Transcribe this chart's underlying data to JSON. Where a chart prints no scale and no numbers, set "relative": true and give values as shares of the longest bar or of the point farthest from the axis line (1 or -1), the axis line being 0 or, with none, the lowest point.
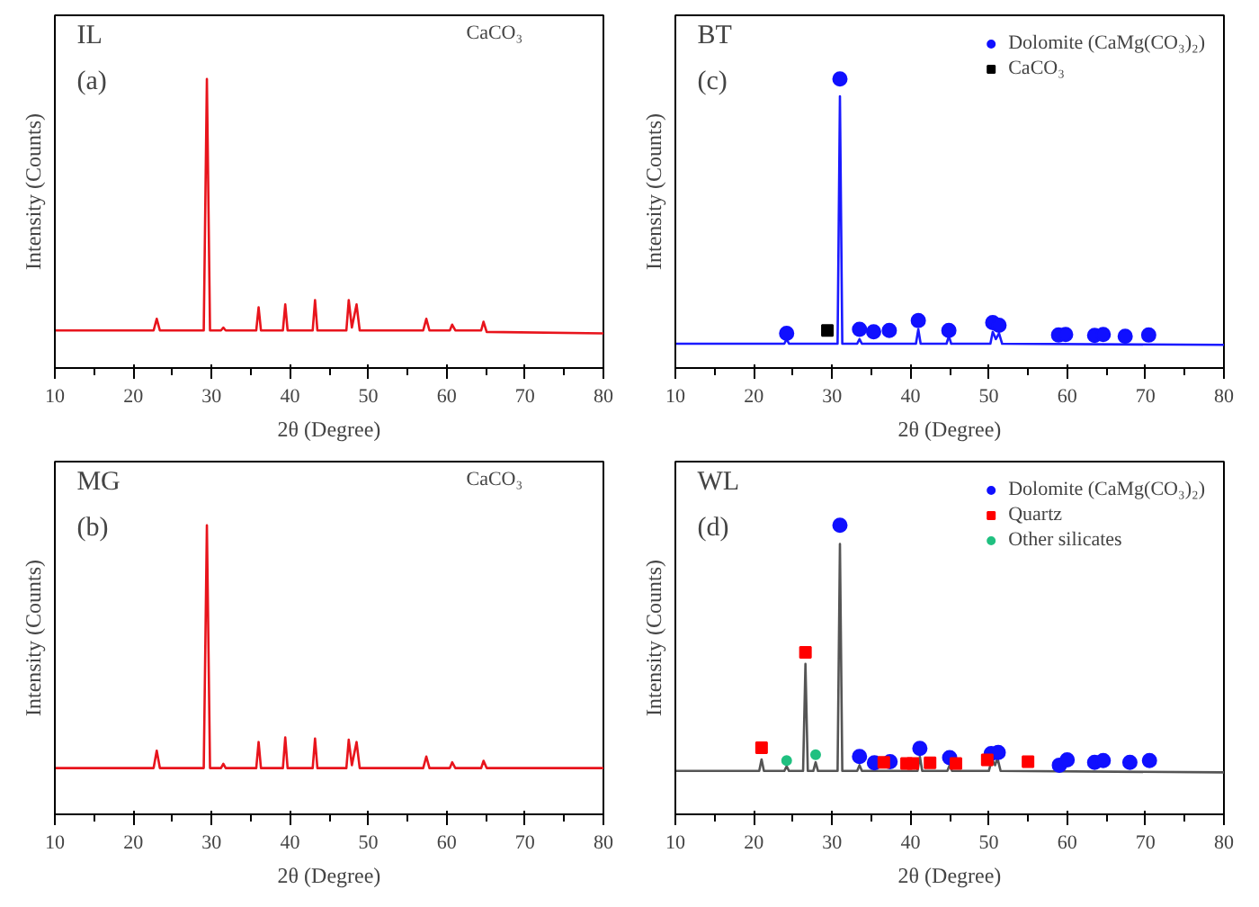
{
  "chart_data": [
    {
      "type": "line",
      "title": "IL",
      "subtitle": "(a)",
      "xlabel": "2θ (Degree)",
      "ylabel": "Intensity (Counts)",
      "relative": true,
      "xlim": [
        10,
        80
      ],
      "xticks": [
        10,
        20,
        30,
        40,
        50,
        60,
        70,
        80
      ],
      "tick_labels": "x",
      "grid": false,
      "legend": false,
      "annotations": [
        "CaCO₃"
      ],
      "series": [
        {
          "color": "#e8141c",
          "marker": "none",
          "x": [
            10,
            22.6,
            23,
            23.4,
            29,
            29.4,
            29.8,
            31.2,
            31.5,
            31.8,
            35.7,
            36,
            36.3,
            39.1,
            39.4,
            39.7,
            42.9,
            43.2,
            43.5,
            47.2,
            47.5,
            47.9,
            48.5,
            48.9,
            57,
            57.4,
            57.8,
            60.4,
            60.7,
            61.1,
            64.4,
            64.7,
            65.1,
            80
          ],
          "values": [
            0.13,
            0.13,
            0.17,
            0.13,
            0.13,
            1.0,
            0.13,
            0.13,
            0.14,
            0.13,
            0.13,
            0.21,
            0.13,
            0.13,
            0.22,
            0.13,
            0.13,
            0.235,
            0.13,
            0.13,
            0.235,
            0.14,
            0.22,
            0.13,
            0.13,
            0.17,
            0.13,
            0.13,
            0.15,
            0.13,
            0.13,
            0.16,
            0.125,
            0.12
          ]
        }
      ]
    },
    {
      "type": "line",
      "title": "BT",
      "subtitle": "(c)",
      "xlabel": "2θ (Degree)",
      "ylabel": "Intensity (Counts)",
      "relative": true,
      "xlim": [
        10,
        80
      ],
      "xticks": [
        10,
        20,
        30,
        40,
        50,
        60,
        70,
        80
      ],
      "tick_labels": "x",
      "grid": false,
      "legend": "top right",
      "series": [
        {
          "color": "#1a1aff",
          "marker": "none",
          "x": [
            10,
            23.9,
            24.2,
            24.5,
            30.7,
            31,
            31.3,
            33.2,
            33.5,
            33.8,
            40.7,
            41,
            41.3,
            44.6,
            44.9,
            45.2,
            50.2,
            50.5,
            50.9,
            51.3,
            51.7,
            80
          ],
          "values": [
            0.084,
            0.084,
            0.1,
            0.084,
            0.084,
            0.94,
            0.084,
            0.084,
            0.1,
            0.084,
            0.084,
            0.134,
            0.084,
            0.084,
            0.11,
            0.084,
            0.084,
            0.125,
            0.1,
            0.12,
            0.084,
            0.08
          ]
        },
        {
          "type": "scatter",
          "name": "Dolomite (CaMg(CO₃)₂)",
          "color": "#1010ff",
          "marker": "circle",
          "x": [
            24.2,
            31,
            33.5,
            35.3,
            37.3,
            41,
            44.9,
            50.5,
            51.3,
            58.9,
            59.8,
            63.5,
            64.6,
            67.4,
            70.4
          ],
          "values": [
            0.12,
            1.0,
            0.134,
            0.125,
            0.13,
            0.164,
            0.13,
            0.157,
            0.148,
            0.114,
            0.116,
            0.113,
            0.116,
            0.11,
            0.114
          ]
        },
        {
          "type": "scatter",
          "name": "CaCO₃",
          "color": "#000000",
          "marker": "square",
          "x": [
            29.4
          ],
          "values": [
            0.13
          ]
        }
      ]
    },
    {
      "type": "line",
      "title": "MG",
      "subtitle": "(b)",
      "xlabel": "2θ (Degree)",
      "ylabel": "Intensity (Counts)",
      "relative": true,
      "xlim": [
        10,
        80
      ],
      "xticks": [
        10,
        20,
        30,
        40,
        50,
        60,
        70,
        80
      ],
      "tick_labels": "x",
      "grid": false,
      "legend": false,
      "annotations": [
        "CaCO₃"
      ],
      "series": [
        {
          "color": "#e8141c",
          "marker": "none",
          "x": [
            10,
            22.6,
            23,
            23.4,
            29,
            29.4,
            29.8,
            31.2,
            31.5,
            31.8,
            35.7,
            36,
            36.3,
            39.1,
            39.4,
            39.7,
            42.9,
            43.2,
            43.5,
            47.2,
            47.5,
            47.9,
            48.5,
            48.9,
            57,
            57.4,
            57.8,
            60.4,
            60.7,
            61.1,
            64.4,
            64.7,
            65.1,
            80
          ],
          "values": [
            0.16,
            0.16,
            0.22,
            0.16,
            0.16,
            1.0,
            0.16,
            0.16,
            0.175,
            0.16,
            0.16,
            0.25,
            0.16,
            0.16,
            0.266,
            0.16,
            0.16,
            0.262,
            0.16,
            0.16,
            0.258,
            0.17,
            0.25,
            0.16,
            0.16,
            0.2,
            0.16,
            0.16,
            0.18,
            0.16,
            0.16,
            0.185,
            0.16,
            0.16
          ]
        }
      ]
    },
    {
      "type": "line",
      "title": "WL",
      "subtitle": "(d)",
      "xlabel": "2θ (Degree)",
      "ylabel": "Intensity (Counts)",
      "relative": true,
      "xlim": [
        10,
        80
      ],
      "xticks": [
        10,
        20,
        30,
        40,
        50,
        60,
        70,
        80
      ],
      "tick_labels": "x",
      "grid": false,
      "legend": "top right",
      "series": [
        {
          "color": "#555555",
          "marker": "none",
          "x": [
            10,
            20.7,
            21,
            21.3,
            23.9,
            24.2,
            24.5,
            26.3,
            26.6,
            26.9,
            27.6,
            27.9,
            28.2,
            30.7,
            31,
            31.3,
            33.2,
            33.5,
            33.8,
            40.9,
            41.2,
            41.5,
            44.7,
            45,
            45.3,
            50,
            50.4,
            50.8,
            51.1,
            51.5,
            80
          ],
          "values": [
            0.15,
            0.15,
            0.19,
            0.15,
            0.15,
            0.166,
            0.15,
            0.15,
            0.52,
            0.15,
            0.15,
            0.18,
            0.15,
            0.15,
            0.935,
            0.15,
            0.15,
            0.17,
            0.15,
            0.15,
            0.2,
            0.15,
            0.15,
            0.17,
            0.15,
            0.15,
            0.19,
            0.17,
            0.195,
            0.15,
            0.145
          ]
        },
        {
          "type": "scatter",
          "name": "Dolomite (CaMg(CO₃)₂)",
          "color": "#1010ff",
          "marker": "circle",
          "x": [
            31,
            33.5,
            35.4,
            37.4,
            41.2,
            45,
            50.3,
            51.2,
            59,
            60,
            63.5,
            64.6,
            68,
            70.5
          ],
          "values": [
            1.0,
            0.2,
            0.178,
            0.182,
            0.228,
            0.196,
            0.21,
            0.214,
            0.17,
            0.188,
            0.18,
            0.186,
            0.18,
            0.186
          ]
        },
        {
          "type": "scatter",
          "name": "Quartz",
          "color": "#ff0000",
          "marker": "square",
          "x": [
            21,
            26.6,
            36.6,
            39.5,
            40.3,
            42.5,
            45.8,
            49.8,
            55
          ],
          "values": [
            0.23,
            0.56,
            0.18,
            0.176,
            0.176,
            0.178,
            0.176,
            0.188,
            0.182
          ]
        },
        {
          "type": "scatter",
          "name": "Other silicates",
          "color": "#20c080",
          "marker": "circle",
          "x": [
            24.2,
            27.9
          ],
          "values": [
            0.186,
            0.206
          ]
        }
      ]
    }
  ]
}
